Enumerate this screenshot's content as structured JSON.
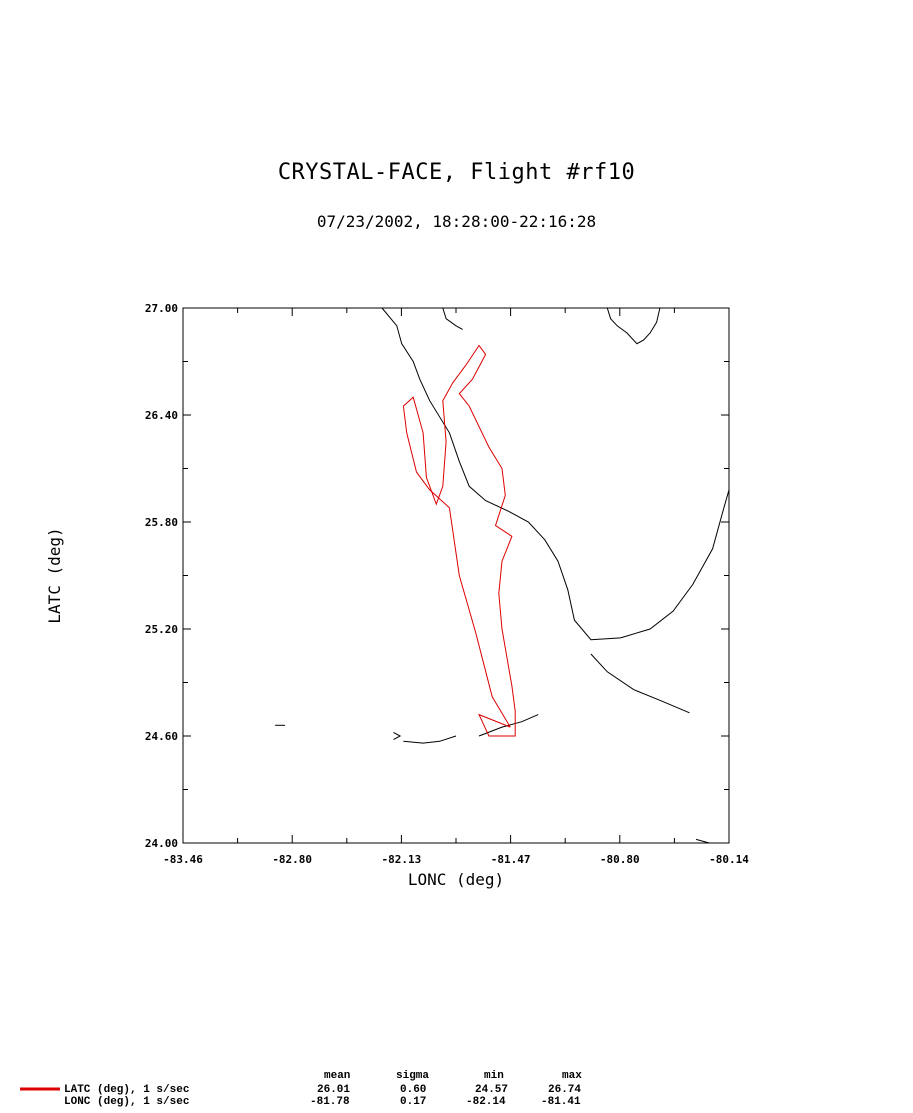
{
  "header": {
    "title": "CRYSTAL-FACE, Flight #rf10",
    "subtitle": "07/23/2002, 18:28:00-22:16:28"
  },
  "chart_data": {
    "type": "line",
    "xlabel": "LONC (deg)",
    "ylabel": "LATC (deg)",
    "xlim": [
      -83.46,
      -80.14
    ],
    "ylim": [
      24.0,
      27.0
    ],
    "x_ticks": [
      "-83.46",
      "-82.80",
      "-82.13",
      "-81.47",
      "-80.80",
      "-80.14"
    ],
    "y_ticks": [
      "24.00",
      "24.60",
      "25.20",
      "25.80",
      "26.40",
      "27.00"
    ],
    "track_color": "#dd0000",
    "coast_color": "#000000",
    "flight_track": [
      [
        -81.47,
        24.65
      ],
      [
        -81.58,
        24.82
      ],
      [
        -81.68,
        25.18
      ],
      [
        -81.78,
        25.5
      ],
      [
        -81.84,
        25.88
      ],
      [
        -81.96,
        25.98
      ],
      [
        -82.04,
        26.08
      ],
      [
        -82.1,
        26.3
      ],
      [
        -82.12,
        26.45
      ],
      [
        -82.06,
        26.5
      ],
      [
        -82.0,
        26.3
      ],
      [
        -81.98,
        26.05
      ],
      [
        -81.92,
        25.9
      ],
      [
        -81.88,
        26.0
      ],
      [
        -81.86,
        26.25
      ],
      [
        -81.88,
        26.48
      ],
      [
        -81.82,
        26.58
      ],
      [
        -81.74,
        26.68
      ],
      [
        -81.66,
        26.79
      ],
      [
        -81.62,
        26.74
      ],
      [
        -81.7,
        26.6
      ],
      [
        -81.78,
        26.52
      ],
      [
        -81.72,
        26.45
      ],
      [
        -81.6,
        26.22
      ],
      [
        -81.52,
        26.1
      ],
      [
        -81.5,
        25.95
      ],
      [
        -81.56,
        25.78
      ],
      [
        -81.46,
        25.72
      ],
      [
        -81.52,
        25.58
      ],
      [
        -81.54,
        25.4
      ],
      [
        -81.52,
        25.2
      ],
      [
        -81.46,
        24.88
      ],
      [
        -81.44,
        24.74
      ],
      [
        -81.44,
        24.6
      ],
      [
        -81.6,
        24.6
      ],
      [
        -81.66,
        24.72
      ],
      [
        -81.47,
        24.65
      ]
    ],
    "coastline": [
      [
        [
          -82.25,
          27.0
        ],
        [
          -82.16,
          26.9
        ],
        [
          -82.13,
          26.8
        ],
        [
          -82.06,
          26.7
        ],
        [
          -82.02,
          26.6
        ],
        [
          -81.96,
          26.48
        ],
        [
          -81.84,
          26.3
        ],
        [
          -81.78,
          26.14
        ],
        [
          -81.72,
          26.0
        ],
        [
          -81.62,
          25.92
        ],
        [
          -81.48,
          25.86
        ],
        [
          -81.36,
          25.8
        ],
        [
          -81.26,
          25.7
        ],
        [
          -81.18,
          25.58
        ],
        [
          -81.12,
          25.42
        ],
        [
          -81.08,
          25.25
        ],
        [
          -80.98,
          25.14
        ],
        [
          -80.8,
          25.15
        ],
        [
          -80.62,
          25.2
        ],
        [
          -80.48,
          25.3
        ],
        [
          -80.36,
          25.45
        ],
        [
          -80.24,
          25.65
        ],
        [
          -80.18,
          25.85
        ],
        [
          -80.14,
          25.98
        ]
      ],
      [
        [
          -81.88,
          27.0
        ],
        [
          -81.86,
          26.94
        ],
        [
          -81.8,
          26.9
        ],
        [
          -81.76,
          26.88
        ]
      ],
      [
        [
          -80.88,
          27.0
        ],
        [
          -80.86,
          26.94
        ],
        [
          -80.82,
          26.9
        ],
        [
          -80.76,
          26.86
        ],
        [
          -80.7,
          26.8
        ],
        [
          -80.66,
          26.82
        ],
        [
          -80.62,
          26.86
        ],
        [
          -80.58,
          26.92
        ],
        [
          -80.56,
          27.0
        ]
      ],
      [
        [
          -80.38,
          24.73
        ],
        [
          -80.56,
          24.8
        ],
        [
          -80.72,
          24.86
        ],
        [
          -80.88,
          24.96
        ],
        [
          -80.98,
          25.06
        ]
      ],
      [
        [
          -81.66,
          24.6
        ],
        [
          -81.52,
          24.65
        ],
        [
          -81.4,
          24.68
        ],
        [
          -81.3,
          24.72
        ]
      ],
      [
        [
          -82.12,
          24.57
        ],
        [
          -82.0,
          24.56
        ],
        [
          -81.9,
          24.57
        ],
        [
          -81.8,
          24.6
        ]
      ],
      [
        [
          -82.18,
          24.62
        ],
        [
          -82.14,
          24.6
        ],
        [
          -82.18,
          24.58
        ]
      ],
      [
        [
          -82.9,
          24.66
        ],
        [
          -82.84,
          24.66
        ]
      ],
      [
        [
          -80.34,
          24.02
        ],
        [
          -80.26,
          24.0
        ]
      ]
    ]
  },
  "stats": {
    "headers": [
      "mean",
      "sigma",
      "min",
      "max"
    ],
    "rows": [
      {
        "label": "LATC (deg), 1 s/sec",
        "mean": "26.01",
        "sigma": "0.60",
        "min": "24.57",
        "max": "26.74"
      },
      {
        "label": "LONC (deg), 1 s/sec",
        "mean": "-81.78",
        "sigma": "0.17",
        "min": "-82.14",
        "max": "-81.41"
      }
    ],
    "legend_color": "#dd0000"
  }
}
